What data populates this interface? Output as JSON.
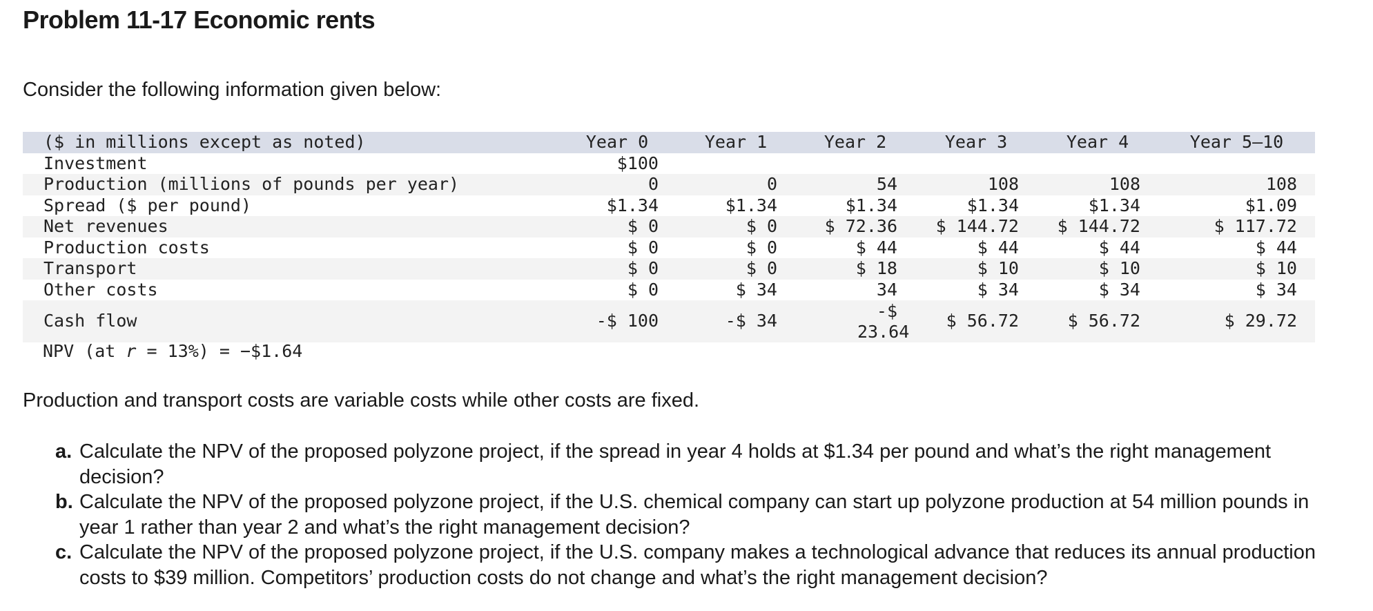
{
  "title": "Problem 11-17 Economic rents",
  "intro": "Consider the following information given below:",
  "table": {
    "header": [
      "($ in millions except as noted)",
      "Year 0",
      "Year 1",
      "Year 2",
      "Year 3",
      "Year 4",
      "Year 5–10"
    ],
    "rows": [
      [
        "Investment",
        "$100",
        null,
        null,
        null,
        null,
        null
      ],
      [
        "Production (millions of pounds per year)",
        "0",
        "0",
        "54",
        "108",
        "108",
        "108"
      ],
      [
        "Spread ($ per pound)",
        "$1.34",
        "$1.34",
        "$1.34",
        "$1.34",
        "$1.34",
        "$1.09"
      ],
      [
        "Net revenues",
        "$ 0",
        "$ 0",
        "$ 72.36",
        "$ 144.72",
        "$ 144.72",
        "$ 117.72"
      ],
      [
        "Production costs",
        "$ 0",
        "$ 0",
        "$ 44",
        "$ 44",
        "$ 44",
        "$ 44"
      ],
      [
        "Transport",
        "$ 0",
        "$ 0",
        "$ 18",
        "$ 10",
        "$ 10",
        "$ 10"
      ],
      [
        "Other costs",
        "$ 0",
        "$ 34",
        "34",
        "$ 34",
        "$ 34",
        "$ 34"
      ],
      [
        "Cash flow",
        "-$ 100",
        "-$ 34",
        "-$ 23.64",
        "$ 56.72",
        "$ 56.72",
        "$ 29.72"
      ]
    ]
  },
  "npv": {
    "prefix": "NPV (at ",
    "variable": "r",
    "suffix": " = 13%) = −$1.64"
  },
  "note": "Production and transport costs are variable costs while other costs are fixed.",
  "questions": [
    {
      "label": "a.",
      "text": "Calculate the NPV of the proposed polyzone project, if the spread in year 4 holds at $1.34 per pound and what’s the right management decision?"
    },
    {
      "label": "b.",
      "text": "Calculate the NPV of the proposed polyzone project, if the U.S. chemical company can start up polyzone production at 54 million pounds in year 1 rather than year 2 and what’s the right management decision?"
    },
    {
      "label": "c.",
      "text": "Calculate the NPV of the proposed polyzone project, if the U.S. company makes a technological advance that reduces its annual production costs to $39 million. Competitors’ production costs do not change and what’s the right management decision?"
    }
  ]
}
